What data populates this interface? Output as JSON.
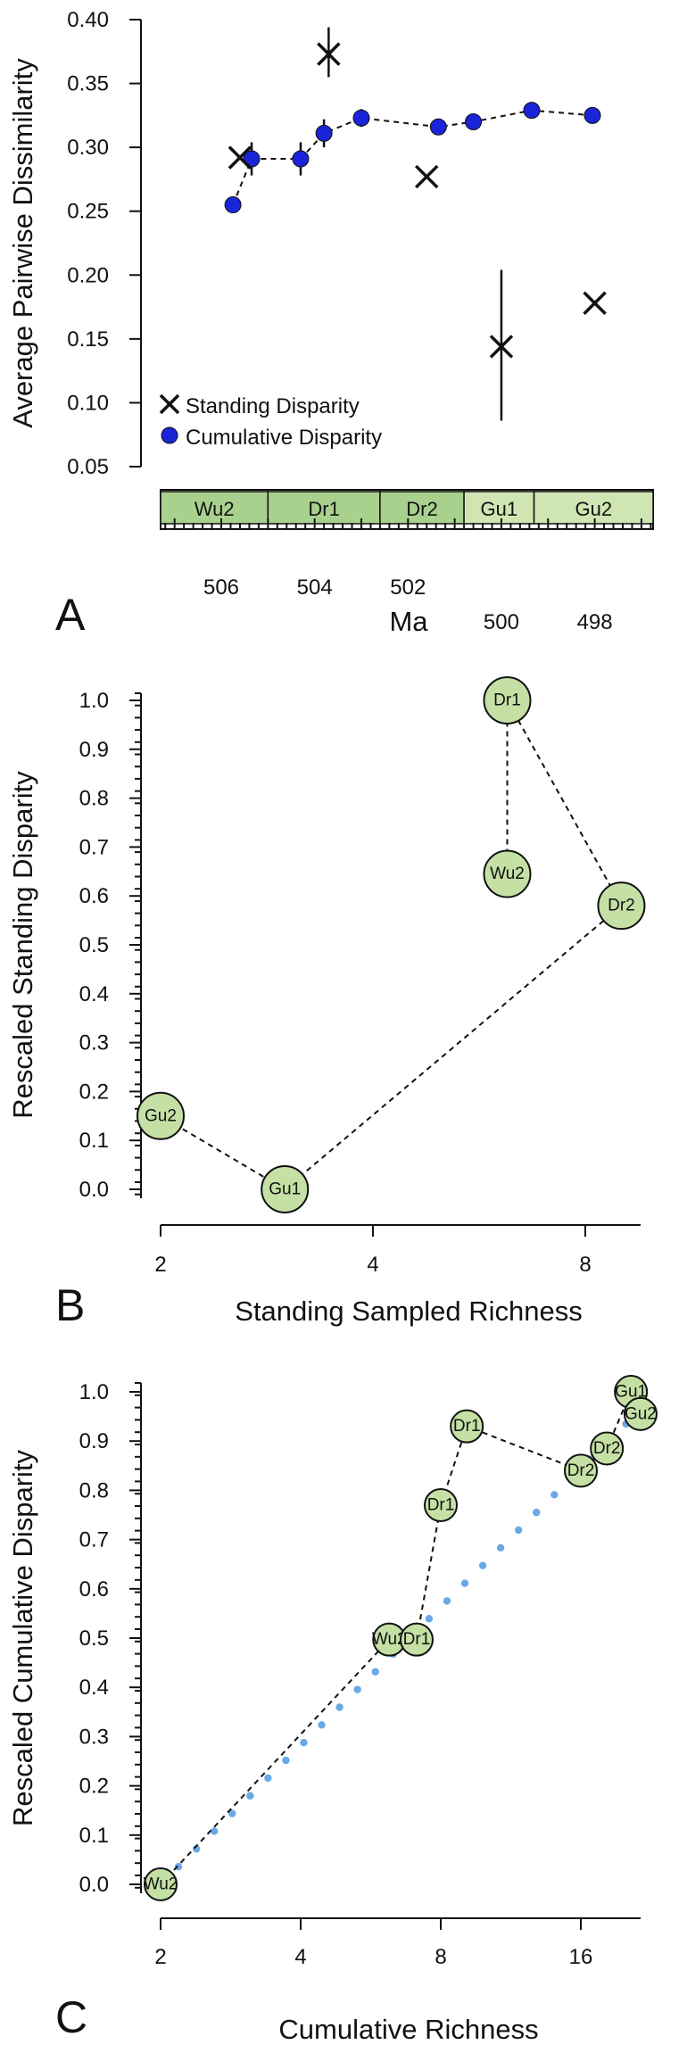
{
  "chart_data": [
    {
      "panel": "A",
      "type": "scatter",
      "ylabel": "Average Pairwise Dissimilarity",
      "xlabel": "Ma",
      "ylim": [
        0.05,
        0.4
      ],
      "yticks": [
        "0.05",
        "0.10",
        "0.15",
        "0.20",
        "0.25",
        "0.30",
        "0.35",
        "0.40"
      ],
      "xlim": [
        507.3,
        496.75
      ],
      "xticks": [
        "506",
        "504",
        "502",
        "500",
        "498"
      ],
      "stages": [
        {
          "name": "Wu2",
          "from": 507.3,
          "to": 505.0
        },
        {
          "name": "Dr1",
          "from": 505.0,
          "to": 502.6
        },
        {
          "name": "Dr2",
          "from": 502.6,
          "to": 500.8
        },
        {
          "name": "Gu1",
          "from": 500.8,
          "to": 499.3
        },
        {
          "name": "Gu2",
          "from": 499.3,
          "to": 496.75
        }
      ],
      "legend": {
        "position": "bottom-left",
        "entries": [
          "Standing Disparity",
          "Cumulative Disparity"
        ]
      },
      "series": [
        {
          "name": "Standing Disparity",
          "marker": "x",
          "points": [
            {
              "x": 505.6,
              "y": 0.292,
              "lo": 0.292,
              "hi": 0.292
            },
            {
              "x": 503.7,
              "y": 0.373,
              "lo": 0.355,
              "hi": 0.394
            },
            {
              "x": 501.6,
              "y": 0.277,
              "lo": 0.277,
              "hi": 0.277
            },
            {
              "x": 500.0,
              "y": 0.144,
              "lo": 0.086,
              "hi": 0.204
            },
            {
              "x": 498.0,
              "y": 0.178,
              "lo": 0.178,
              "hi": 0.178
            }
          ]
        },
        {
          "name": "Cumulative Disparity",
          "marker": "circle",
          "points": [
            {
              "x": 505.75,
              "y": 0.255,
              "lo": 0.255,
              "hi": 0.255
            },
            {
              "x": 505.35,
              "y": 0.291,
              "lo": 0.278,
              "hi": 0.304
            },
            {
              "x": 504.3,
              "y": 0.291,
              "lo": 0.278,
              "hi": 0.304
            },
            {
              "x": 503.8,
              "y": 0.311,
              "lo": 0.3,
              "hi": 0.322
            },
            {
              "x": 503.0,
              "y": 0.323,
              "lo": 0.316,
              "hi": 0.33
            },
            {
              "x": 501.35,
              "y": 0.316,
              "lo": 0.316,
              "hi": 0.316
            },
            {
              "x": 500.6,
              "y": 0.32,
              "lo": 0.32,
              "hi": 0.32
            },
            {
              "x": 499.35,
              "y": 0.329,
              "lo": 0.329,
              "hi": 0.329
            },
            {
              "x": 498.05,
              "y": 0.325,
              "lo": 0.325,
              "hi": 0.325
            }
          ]
        }
      ]
    },
    {
      "panel": "B",
      "type": "scatter",
      "xlabel": "Standing Sampled Richness",
      "ylabel": "Rescaled Standing Disparity",
      "xscale": "log2",
      "xticks": [
        "2",
        "4",
        "8"
      ],
      "ylim": [
        0.0,
        1.0
      ],
      "yticks": [
        "0.0",
        "0.1",
        "0.2",
        "0.3",
        "0.4",
        "0.5",
        "0.6",
        "0.7",
        "0.8",
        "0.9",
        "1.0"
      ],
      "points": [
        {
          "label": "Wu2",
          "x": 6.2,
          "y": 0.645
        },
        {
          "label": "Dr1",
          "x": 6.2,
          "y": 1.0
        },
        {
          "label": "Dr2",
          "x": 9.0,
          "y": 0.58
        },
        {
          "label": "Gu1",
          "x": 3.0,
          "y": 0.0
        },
        {
          "label": "Gu2",
          "x": 2.0,
          "y": 0.15
        }
      ]
    },
    {
      "panel": "C",
      "type": "scatter",
      "xlabel": "Cumulative Richness",
      "ylabel": "Rescaled Cumulative Disparity",
      "xscale": "log2",
      "xticks": [
        "2",
        "4",
        "8",
        "16"
      ],
      "ylim": [
        0.0,
        1.0
      ],
      "yticks": [
        "0.0",
        "0.1",
        "0.2",
        "0.3",
        "0.4",
        "0.5",
        "0.6",
        "0.7",
        "0.8",
        "0.9",
        "1.0"
      ],
      "points": [
        {
          "label": "Wu2",
          "x": 2.0,
          "y": 0.0
        },
        {
          "label": "Wu2",
          "x": 6.2,
          "y": 0.497
        },
        {
          "label": "Dr1",
          "x": 7.1,
          "y": 0.497
        },
        {
          "label": "Dr1",
          "x": 8.0,
          "y": 0.77
        },
        {
          "label": "Dr1",
          "x": 9.1,
          "y": 0.93
        },
        {
          "label": "Dr2",
          "x": 16.0,
          "y": 0.84
        },
        {
          "label": "Dr2",
          "x": 18.2,
          "y": 0.885
        },
        {
          "label": "Gu1",
          "x": 20.5,
          "y": 1.0
        },
        {
          "label": "Gu2",
          "x": 21.5,
          "y": 0.955
        }
      ],
      "reference_line": {
        "style": "dotted",
        "from": {
          "x": 2.0,
          "y": 0.0
        },
        "to": {
          "x": 20.0,
          "y": 0.935
        }
      }
    }
  ]
}
